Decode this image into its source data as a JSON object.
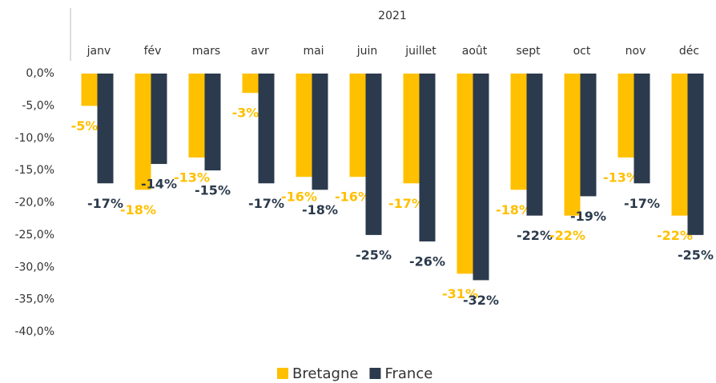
{
  "chart_data": {
    "type": "bar",
    "title": "2021",
    "categories": [
      "janv",
      "fév",
      "mars",
      "avr",
      "mai",
      "juin",
      "juillet",
      "août",
      "sept",
      "oct",
      "nov",
      "déc"
    ],
    "series": [
      {
        "name": "Bretagne",
        "color": "#FFC000",
        "values": [
          -5,
          -18,
          -13,
          -3,
          -16,
          -16,
          -17,
          -31,
          -18,
          -22,
          -13,
          -22
        ],
        "value_labels": [
          "-5%",
          "-18%",
          "-13%",
          "-3%",
          "-16%",
          "-16%",
          "-17%",
          "-31%",
          "-18%",
          "-22%",
          "-13%",
          "-22%"
        ]
      },
      {
        "name": "France",
        "color": "#2B3A4C",
        "values": [
          -17,
          -14,
          -15,
          -17,
          -18,
          -25,
          -26,
          -32,
          -22,
          -19,
          -17,
          -25
        ],
        "value_labels": [
          "-17%",
          "-14%",
          "-15%",
          "-17%",
          "-18%",
          "-25%",
          "-26%",
          "-32%",
          "-22%",
          "-19%",
          "-17%",
          "-25%"
        ]
      }
    ],
    "ylim": [
      -40,
      0
    ],
    "yticks": [
      {
        "value": 0,
        "label": "0,0%"
      },
      {
        "value": -5,
        "label": "-5,0%"
      },
      {
        "value": -10,
        "label": "-10,0%"
      },
      {
        "value": -15,
        "label": "-15,0%"
      },
      {
        "value": -20,
        "label": "-20,0%"
      },
      {
        "value": -25,
        "label": "-25,0%"
      },
      {
        "value": -30,
        "label": "-30,0%"
      },
      {
        "value": -35,
        "label": "-35,0%"
      },
      {
        "value": -40,
        "label": "-40,0%"
      }
    ],
    "grid": false,
    "legend": "bottom"
  }
}
